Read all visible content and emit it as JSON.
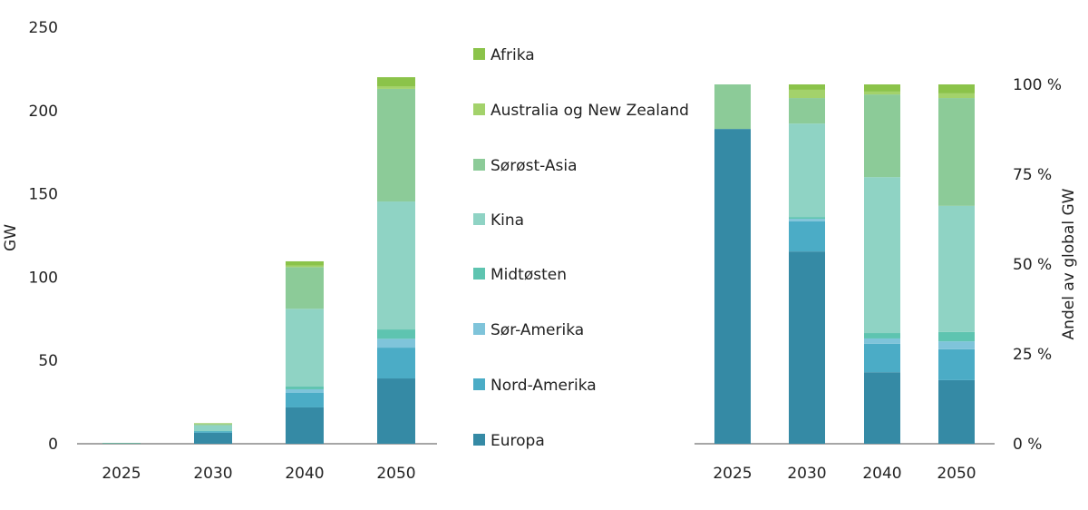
{
  "legend": [
    "Afrika",
    "Australia og New Zealand",
    "Sørøst-Asia",
    "Kina",
    "Midtøsten",
    "Sør-Amerika",
    "Nord-Amerika",
    "Europa"
  ],
  "chart_data": [
    {
      "type": "bar",
      "stacked": true,
      "categories": [
        "2025",
        "2030",
        "2040",
        "2050"
      ],
      "ylabel": "GW",
      "ylim": [
        0,
        250
      ],
      "yticks": [
        "0",
        "50",
        "100",
        "150",
        "200",
        "250"
      ],
      "grid": false,
      "legend_placement": "right",
      "series": [
        {
          "name": "Europa",
          "color": "#358aa5",
          "values": [
            0.44,
            6.6,
            21.8,
            39.2
          ]
        },
        {
          "name": "Nord-Amerika",
          "color": "#4bacc6",
          "values": [
            0,
            1.0,
            8.7,
            18.5
          ]
        },
        {
          "name": "Sør-Amerika",
          "color": "#7fc4da",
          "values": [
            0,
            0.1,
            2.2,
            5.3
          ]
        },
        {
          "name": "Midtøsten",
          "color": "#5ec4b0",
          "values": [
            0,
            0.1,
            1.6,
            5.6
          ]
        },
        {
          "name": "Kina",
          "color": "#8fd3c4",
          "values": [
            0,
            3.2,
            46.7,
            76.8
          ]
        },
        {
          "name": "Sørøst-Asia",
          "color": "#8ccb98",
          "values": [
            0.06,
            0.8,
            25.0,
            67.6
          ]
        },
        {
          "name": "Australia og New Zealand",
          "color": "#a3d26b",
          "values": [
            0,
            0.3,
            1.0,
            1.6
          ]
        },
        {
          "name": "Afrika",
          "color": "#8bc34a",
          "values": [
            0,
            0.2,
            2.5,
            5.4
          ]
        }
      ]
    },
    {
      "type": "bar",
      "stacked": true,
      "categories": [
        "2025",
        "2030",
        "2040",
        "2050"
      ],
      "ylabel": "Andel av global GW",
      "ylim": [
        0,
        100
      ],
      "yticks": [
        "0 %",
        "25 %",
        "50 %",
        "75 %",
        "100 %"
      ],
      "grid": false,
      "series": [
        {
          "name": "Europa",
          "color": "#358aa5",
          "values": [
            87.6,
            53.5,
            19.9,
            17.7
          ]
        },
        {
          "name": "Nord-Amerika",
          "color": "#4bacc6",
          "values": [
            0,
            8.4,
            7.9,
            8.6
          ]
        },
        {
          "name": "Sør-Amerika",
          "color": "#7fc4da",
          "values": [
            0,
            0.7,
            1.5,
            2.2
          ]
        },
        {
          "name": "Midtøsten",
          "color": "#5ec4b0",
          "values": [
            0,
            0.5,
            1.5,
            2.6
          ]
        },
        {
          "name": "Kina",
          "color": "#8fd3c4",
          "values": [
            0,
            26.0,
            43.4,
            35.1
          ]
        },
        {
          "name": "Sørøst-Asia",
          "color": "#8ccb98",
          "values": [
            12.4,
            7.1,
            23.0,
            30.0
          ]
        },
        {
          "name": "Australia og New Zealand",
          "color": "#a3d26b",
          "values": [
            0,
            2.3,
            0.8,
            1.3
          ]
        },
        {
          "name": "Afrika",
          "color": "#8bc34a",
          "values": [
            0,
            1.5,
            2.0,
            2.5
          ]
        }
      ]
    }
  ]
}
